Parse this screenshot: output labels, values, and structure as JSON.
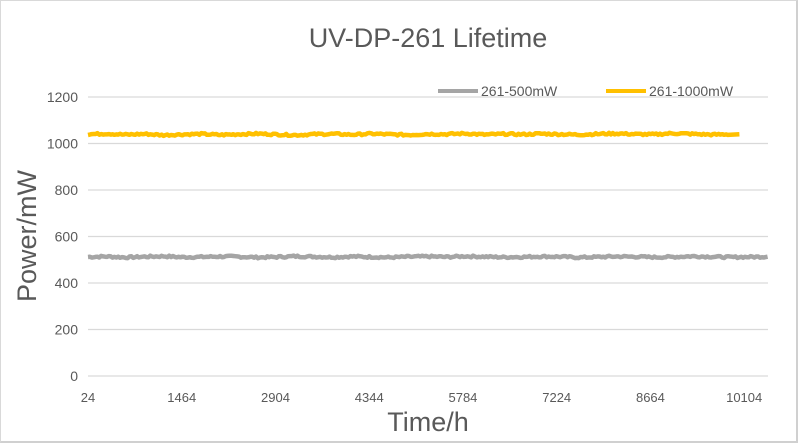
{
  "chart_data": {
    "type": "line",
    "title": "UV-DP-261 Lifetime",
    "xlabel": "Time/h",
    "ylabel": "Power/mW",
    "ylim": [
      0,
      1200
    ],
    "yticks": [
      0,
      200,
      400,
      600,
      800,
      1000,
      1200
    ],
    "xlim": [
      24,
      10470
    ],
    "xticks": [
      24,
      1464,
      2904,
      4344,
      5784,
      7224,
      8664,
      10104
    ],
    "grid": true,
    "legend": "top-right",
    "series": [
      {
        "name": "261-500mW",
        "color": "#a5a5a5",
        "x_start": 24,
        "x_end": 10464,
        "x_step": 290,
        "values": [
          512,
          514,
          510,
          513,
          515,
          511,
          512,
          514,
          513,
          510,
          512,
          515,
          513,
          511,
          514,
          512,
          510,
          513,
          514,
          512,
          515,
          513,
          511,
          512,
          514,
          513,
          510,
          512,
          514,
          513,
          511,
          512,
          515,
          513,
          511,
          512,
          513
        ]
      },
      {
        "name": "261-1000mW",
        "color": "#ffc000",
        "x_start": 24,
        "x_end": 10030,
        "x_step": 290,
        "values": [
          1040,
          1042,
          1038,
          1041,
          1036,
          1039,
          1041,
          1037,
          1040,
          1042,
          1039,
          1036,
          1040,
          1041,
          1038,
          1042,
          1039,
          1037,
          1041,
          1040,
          1043,
          1038,
          1041,
          1039,
          1042,
          1040,
          1038,
          1041,
          1043,
          1040,
          1039,
          1044,
          1041,
          1038,
          1040
        ]
      }
    ]
  }
}
